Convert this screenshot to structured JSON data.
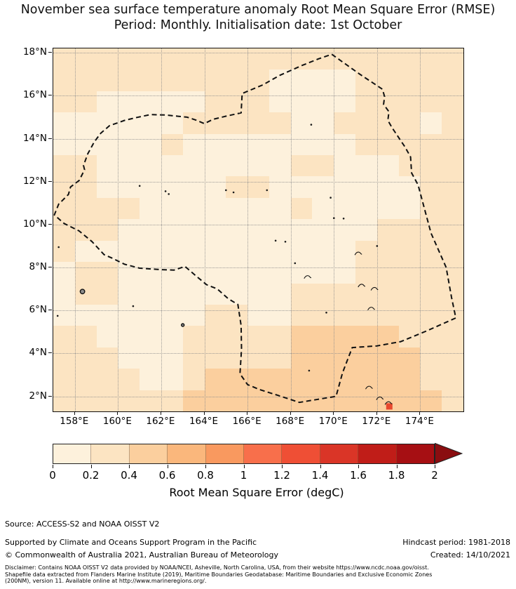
{
  "title": {
    "line1": "November sea surface temperature anomaly Root Mean Square Error (RMSE)",
    "line2": "Period: Monthly. Initialisation date: 1st October"
  },
  "chart_data": {
    "type": "heatmap",
    "subtype": "geographic-map-of-RMSE",
    "title": "November sea surface temperature anomaly Root Mean Square Error (RMSE)",
    "subtitle": "Period: Monthly. Initialisation date: 1st October",
    "lon_range": [
      157,
      176
    ],
    "lat_range": [
      1.3,
      18.2
    ],
    "x_ticks": [
      {
        "label": "158°E",
        "lon": 158
      },
      {
        "label": "160°E",
        "lon": 160
      },
      {
        "label": "162°E",
        "lon": 162
      },
      {
        "label": "164°E",
        "lon": 164
      },
      {
        "label": "166°E",
        "lon": 166
      },
      {
        "label": "168°E",
        "lon": 168
      },
      {
        "label": "170°E",
        "lon": 170
      },
      {
        "label": "172°E",
        "lon": 172
      },
      {
        "label": "174°E",
        "lon": 174
      }
    ],
    "y_ticks": [
      {
        "label": "18°N",
        "lat": 18
      },
      {
        "label": "16°N",
        "lat": 16
      },
      {
        "label": "14°N",
        "lat": 14
      },
      {
        "label": "12°N",
        "lat": 12
      },
      {
        "label": "10°N",
        "lat": 10
      },
      {
        "label": "8°N",
        "lat": 8
      },
      {
        "label": "6°N",
        "lat": 6
      },
      {
        "label": "4°N",
        "lat": 4
      },
      {
        "label": "2°N",
        "lat": 2
      }
    ],
    "grid_on": true,
    "bins": [
      {
        "value_range": "0.0-0.2 degC",
        "color": "#fdf1dc"
      },
      {
        "value_range": "0.2-0.4 degC",
        "color": "#fce4c2"
      },
      {
        "value_range": "0.4-0.6 degC",
        "color": "#fbcf9e"
      }
    ],
    "cell_size_deg": 1,
    "grid_rows": [
      "1111111111111111111",
      "1111111111000011111",
      "1100000111000011111",
      "0000001111100111101",
      "0000010000000011111",
      "1100000000011000111",
      "1100000011000000011",
      "1111000000010000011",
      "1110000000000001111",
      "1000000000000011111",
      "0110000000000011111",
      "0110000000011111111",
      "0000000110011111111",
      "1100001111122222111",
      "1110001111122222211",
      "1111001222222222211",
      "1111112222222222221"
    ],
    "hotspot": {
      "lon": 172.55,
      "lat": 1.55,
      "color": "#e8492f",
      "value_range": "~1.0-1.2 degC"
    },
    "boundary_name": "EEZ boundary (dashed)",
    "boundary_points": [
      [
        169.9,
        17.93
      ],
      [
        171.2,
        17.0
      ],
      [
        172.25,
        16.3
      ],
      [
        172.35,
        15.95
      ],
      [
        172.3,
        15.6
      ],
      [
        172.55,
        15.25
      ],
      [
        172.5,
        14.85
      ],
      [
        172.7,
        14.5
      ],
      [
        173.3,
        13.6
      ],
      [
        173.55,
        13.15
      ],
      [
        173.6,
        12.4
      ],
      [
        173.9,
        11.85
      ],
      [
        174.5,
        9.6
      ],
      [
        175.2,
        8.0
      ],
      [
        175.45,
        6.6
      ],
      [
        175.65,
        5.65
      ],
      [
        174.3,
        5.05
      ],
      [
        173.1,
        4.55
      ],
      [
        172.0,
        4.35
      ],
      [
        170.85,
        4.27
      ],
      [
        170.4,
        3.1
      ],
      [
        170.1,
        2.0
      ],
      [
        169.3,
        1.87
      ],
      [
        168.4,
        1.72
      ],
      [
        167.4,
        2.05
      ],
      [
        166.55,
        2.32
      ],
      [
        166.0,
        2.55
      ],
      [
        165.65,
        3.05
      ],
      [
        165.72,
        4.2
      ],
      [
        165.7,
        5.3
      ],
      [
        165.55,
        6.28
      ],
      [
        165.1,
        6.55
      ],
      [
        164.6,
        7.0
      ],
      [
        164.1,
        7.2
      ],
      [
        163.6,
        7.62
      ],
      [
        163.1,
        8.05
      ],
      [
        162.6,
        7.88
      ],
      [
        162.0,
        7.9
      ],
      [
        161.0,
        7.97
      ],
      [
        160.3,
        8.15
      ],
      [
        159.7,
        8.45
      ],
      [
        159.35,
        8.6
      ],
      [
        158.8,
        9.2
      ],
      [
        158.2,
        9.7
      ],
      [
        157.5,
        10.05
      ],
      [
        157.05,
        10.45
      ],
      [
        157.25,
        10.95
      ],
      [
        157.7,
        11.4
      ],
      [
        157.8,
        11.75
      ],
      [
        158.2,
        12.05
      ],
      [
        158.45,
        12.55
      ],
      [
        158.4,
        12.75
      ],
      [
        158.6,
        13.3
      ],
      [
        158.9,
        13.85
      ],
      [
        159.2,
        14.25
      ],
      [
        159.6,
        14.6
      ],
      [
        160.3,
        14.85
      ],
      [
        160.8,
        14.97
      ],
      [
        161.5,
        15.12
      ],
      [
        162.2,
        15.1
      ],
      [
        163.2,
        15.0
      ],
      [
        163.65,
        14.85
      ],
      [
        164.0,
        14.7
      ],
      [
        164.4,
        14.9
      ],
      [
        165.05,
        15.06
      ],
      [
        165.7,
        15.2
      ],
      [
        165.75,
        16.1
      ],
      [
        166.7,
        16.5
      ],
      [
        167.5,
        16.95
      ],
      [
        168.5,
        17.4
      ],
      [
        169.3,
        17.72
      ]
    ],
    "islands": [
      [
        157.2,
        5.75,
        "dot"
      ],
      [
        157.25,
        8.95,
        "dot"
      ],
      [
        158.35,
        6.88,
        "ring"
      ],
      [
        160.7,
        6.2,
        "dot"
      ],
      [
        161.0,
        11.8,
        "dot"
      ],
      [
        162.2,
        11.55,
        "dot"
      ],
      [
        162.35,
        11.42,
        "dot"
      ],
      [
        163.0,
        5.32,
        "ringsm"
      ],
      [
        165.0,
        11.6,
        "dot"
      ],
      [
        165.35,
        11.5,
        "dot"
      ],
      [
        166.9,
        11.6,
        "dot"
      ],
      [
        167.3,
        9.25,
        "dot"
      ],
      [
        167.75,
        9.2,
        "dot"
      ],
      [
        168.2,
        8.2,
        "dot"
      ],
      [
        168.75,
        7.55,
        "arc"
      ],
      [
        168.95,
        14.65,
        "dot"
      ],
      [
        169.65,
        5.9,
        "dot"
      ],
      [
        169.85,
        11.25,
        "dot"
      ],
      [
        170.0,
        10.3,
        "dot"
      ],
      [
        170.45,
        10.28,
        "dot"
      ],
      [
        168.85,
        3.2,
        "dot"
      ],
      [
        171.1,
        8.65,
        "arc"
      ],
      [
        171.25,
        7.15,
        "arc"
      ],
      [
        171.85,
        7.0,
        "arc"
      ],
      [
        171.7,
        6.08,
        "arc"
      ],
      [
        172.0,
        9.0,
        "dot"
      ],
      [
        171.6,
        2.4,
        "arc"
      ],
      [
        172.1,
        1.9,
        "arc"
      ],
      [
        172.5,
        1.68,
        "arc"
      ]
    ]
  },
  "colorbar": {
    "label": "Root Mean Square Error (degC)",
    "ticks": [
      "0",
      "0.2",
      "0.4",
      "0.6",
      "0.8",
      "1",
      "1.2",
      "1.4",
      "1.6",
      "1.8",
      "2"
    ],
    "colors": [
      "#fdf1dc",
      "#fce4c2",
      "#fbcf9e",
      "#fab77c",
      "#f9995f",
      "#f86f4b",
      "#ef4f35",
      "#da3527",
      "#c01d18",
      "#a60f13"
    ],
    "arrow_color": "#8a0d10"
  },
  "footer": {
    "source": "Source: ACCESS-S2 and NOAA OISST V2",
    "supported": "Supported by Climate and Oceans Support Program in the Pacific",
    "copyright": "© Commonwealth of Australia 2021, Australian Bureau of Meteorology",
    "hindcast": "Hindcast period: 1981-2018",
    "created": "Created: 14/10/2021",
    "disclaimer_lines": [
      "Disclaimer: Contains NOAA OISST V2 data provided by NOAA/NCEI, Asheville, North Carolina, USA, from their website https://www.ncdc.noaa.gov/oisst.",
      "Shapefile data extracted from Flanders Marine Institute (2019), Maritime Boundaries Geodatabase: Maritime Boundaries and Exclusive Economic Zones",
      "(200NM), version 11. Available online at http://www.marineregions.org/."
    ]
  }
}
